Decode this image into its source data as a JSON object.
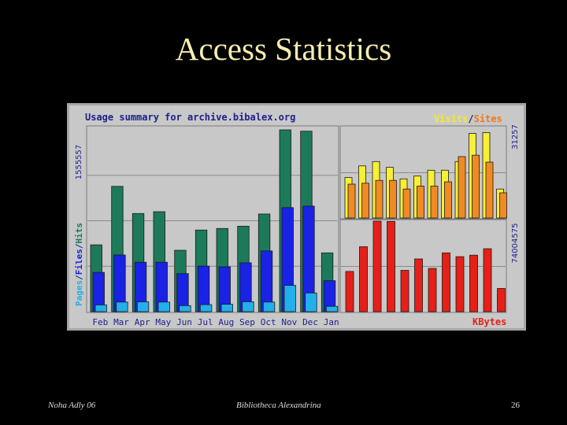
{
  "slide": {
    "title": "Access Statistics",
    "footer_left": "Noha Adly 06",
    "footer_center": "Bibliotheca Alexandrina",
    "page_number": "26"
  },
  "colors": {
    "background": "#000000",
    "panel": "#c8c8c8",
    "hits": "#1c7a5a",
    "files": "#1a22e6",
    "pages": "#22b0ea",
    "visits": "#f7f034",
    "sites": "#f08a24",
    "kbytes": "#e62018",
    "header_text": "#20208a"
  },
  "chart_data": [
    {
      "type": "bar",
      "title": "Usage summary for archive.bibalex.org",
      "ylabel_max": "1555557",
      "ylim": [
        0,
        1555557
      ],
      "categories": [
        "Feb",
        "Mar",
        "Apr",
        "May",
        "Jun",
        "Jul",
        "Aug",
        "Sep",
        "Oct",
        "Nov",
        "Dec",
        "Jan"
      ],
      "y_axis_legend": [
        "Pages",
        "/",
        "Files",
        "/",
        "Hits"
      ],
      "series": [
        {
          "name": "Hits",
          "values": [
            572000,
            1072000,
            840000,
            855000,
            525000,
            698000,
            712000,
            731000,
            836000,
            1555557,
            1544000,
            503000
          ]
        },
        {
          "name": "Files",
          "values": [
            336000,
            485000,
            423000,
            423000,
            325000,
            390000,
            384000,
            418000,
            520000,
            890000,
            903000,
            265000
          ]
        },
        {
          "name": "Pages",
          "values": [
            58000,
            82000,
            84000,
            82000,
            52000,
            60000,
            63000,
            85000,
            82000,
            225000,
            160000,
            46000
          ]
        }
      ]
    },
    {
      "type": "bar",
      "ylabel_max": "31257",
      "ylim": [
        0,
        31257
      ],
      "legend": [
        "Visits",
        "/",
        "Sites"
      ],
      "series": [
        {
          "name": "Visits",
          "values": [
            14000,
            18000,
            19500,
            17500,
            13500,
            14500,
            16500,
            16500,
            19500,
            29200,
            29500,
            10000
          ]
        },
        {
          "name": "Sites",
          "values": [
            11700,
            12000,
            13000,
            13000,
            10000,
            11000,
            11000,
            12500,
            21200,
            21700,
            19300,
            8700
          ]
        }
      ]
    },
    {
      "type": "bar",
      "ylabel_max": "74004575",
      "ylim": [
        0,
        74004575
      ],
      "legend": [
        "KBytes"
      ],
      "series": [
        {
          "name": "KBytes",
          "values": [
            32900000,
            53100000,
            74004575,
            73800000,
            33800000,
            43100000,
            35400000,
            48100000,
            45000000,
            46200000,
            51500000,
            19000000
          ]
        }
      ]
    }
  ]
}
